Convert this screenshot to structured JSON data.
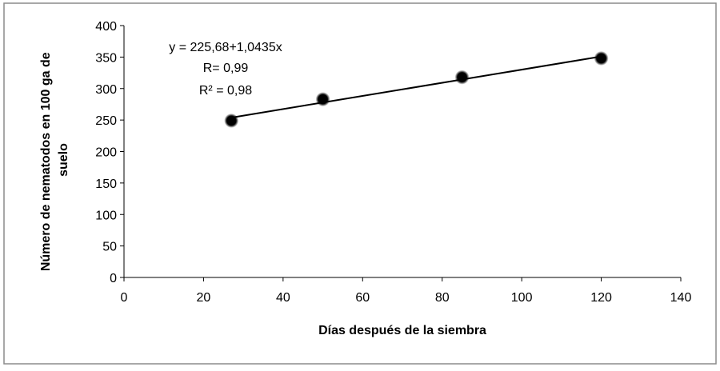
{
  "chart_data": {
    "type": "scatter",
    "title": "",
    "xlabel": "Días después de la siembra",
    "ylabel_lines": [
      "Número de nematodos en 100 ga de",
      "suelo"
    ],
    "xlim": [
      0,
      140
    ],
    "ylim": [
      0,
      400
    ],
    "x_ticks": [
      0,
      20,
      40,
      60,
      80,
      100,
      120,
      140
    ],
    "y_ticks": [
      0,
      50,
      100,
      150,
      200,
      250,
      300,
      350,
      400
    ],
    "x_tick_labels": [
      "0",
      "20",
      "40",
      "60",
      "80",
      "100",
      "120",
      "140"
    ],
    "y_tick_labels": [
      "0",
      "50",
      "100",
      "150",
      "200",
      "250",
      "300",
      "350",
      "400"
    ],
    "grid": false,
    "legend": "none",
    "series": [
      {
        "x": [
          27,
          50,
          85,
          120
        ],
        "y": [
          249,
          283,
          318,
          348
        ]
      }
    ],
    "trendline": {
      "x": [
        27,
        120
      ],
      "intercept": 225.68,
      "slope": 1.0435
    },
    "annotations": [
      "y = 225,68+1,0435x",
      "R= 0,99",
      "R² = 0,98"
    ],
    "colors": {
      "marker": "#000000",
      "line": "#000000",
      "border": "#8c8c8c"
    }
  }
}
